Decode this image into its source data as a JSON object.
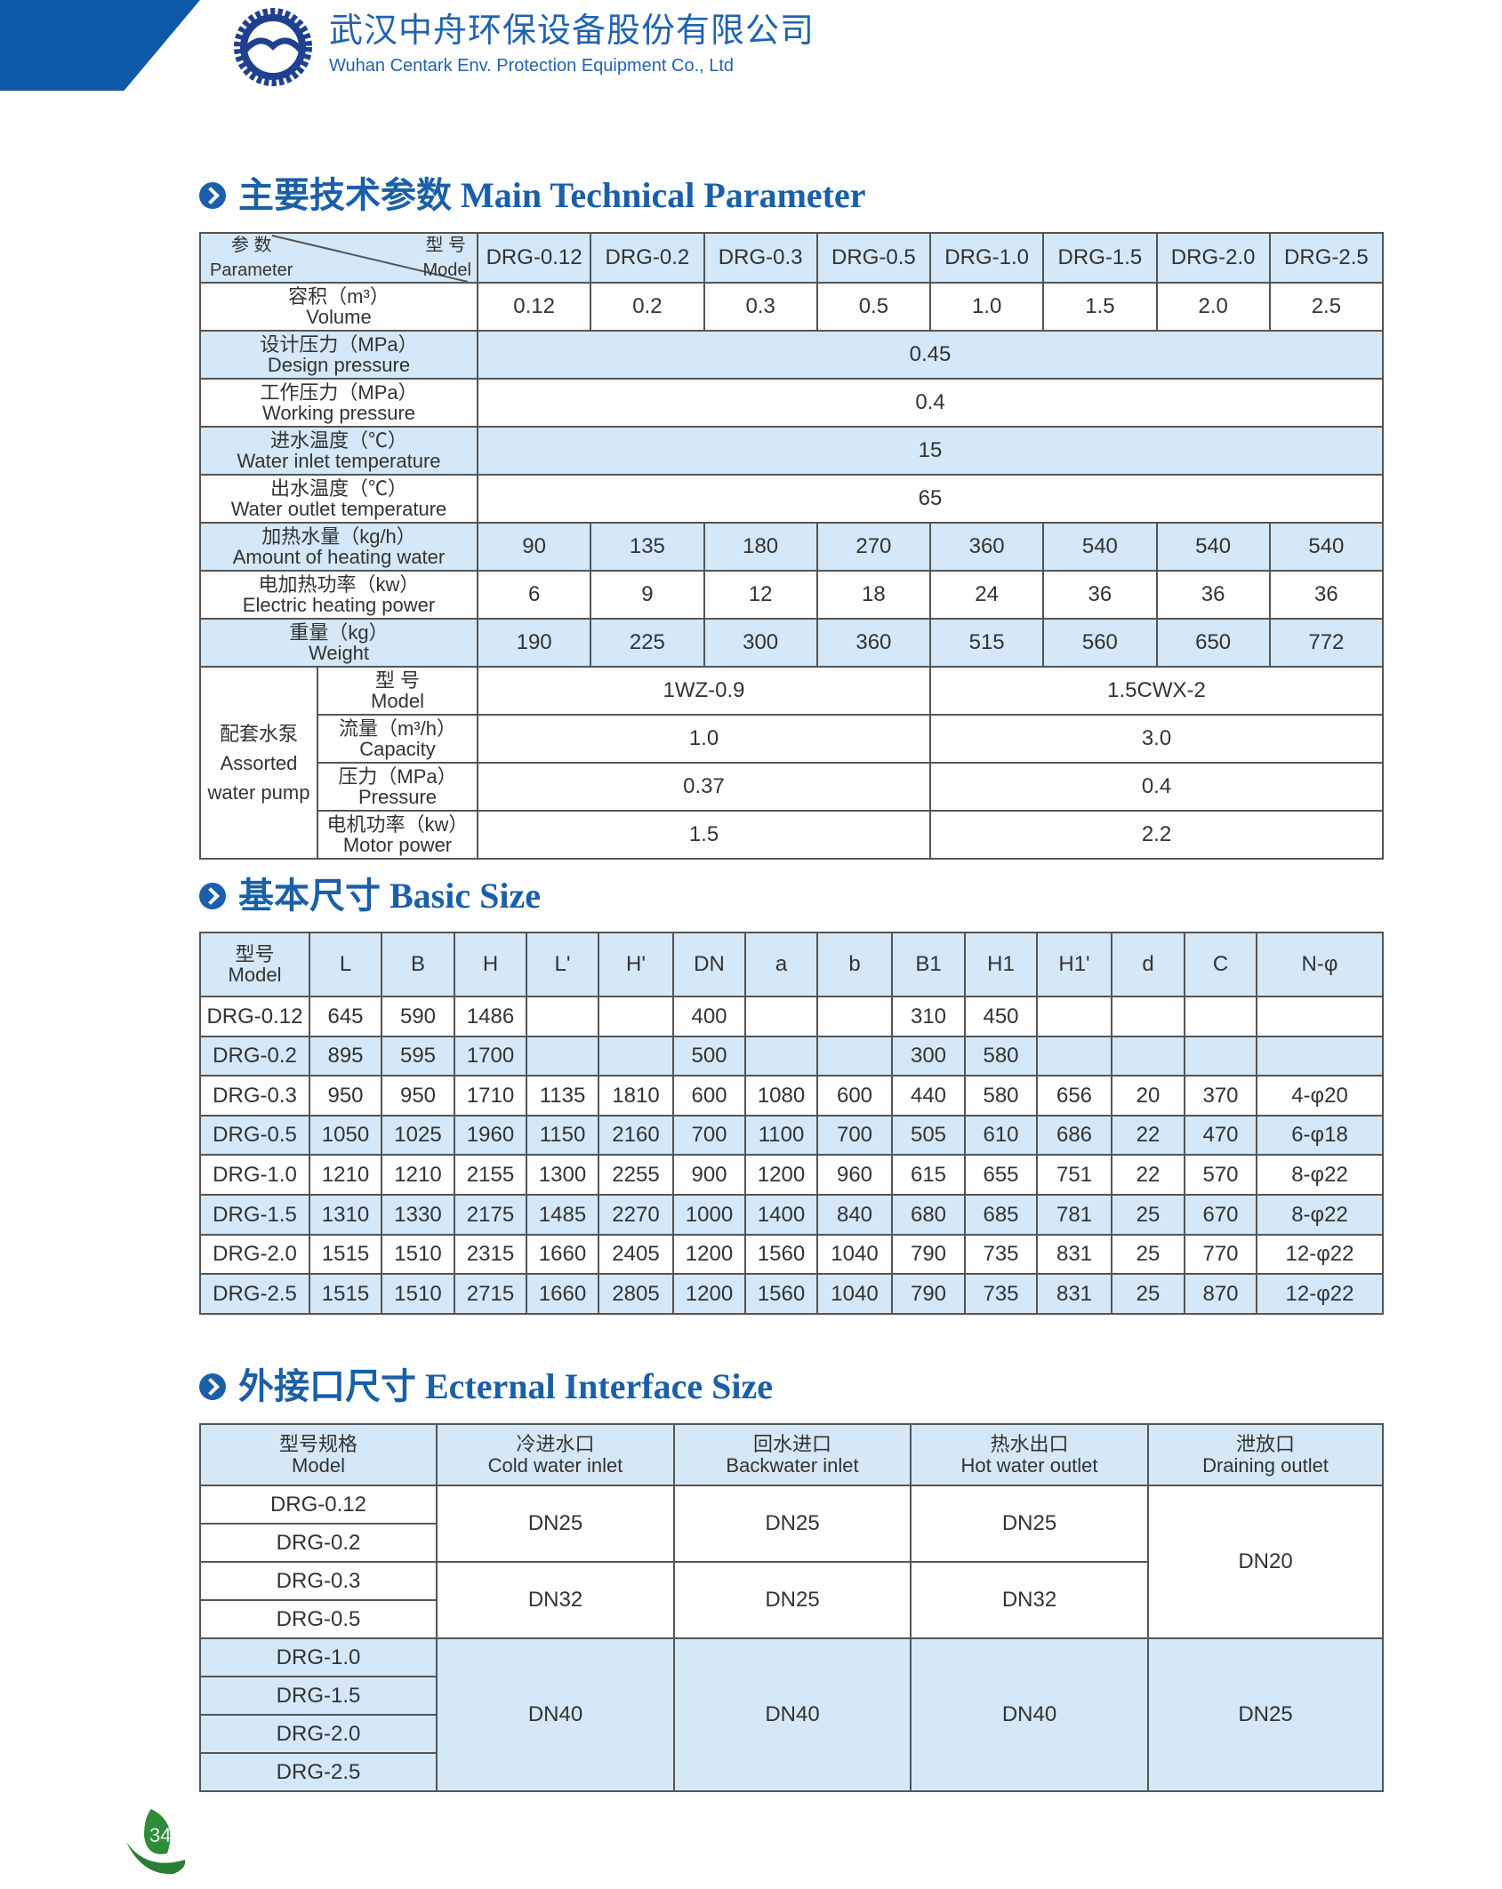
{
  "header": {
    "company_cn": "武汉中舟环保设备股份有限公司",
    "company_en": "Wuhan Centark Env. Protection Equipment Co., Ltd"
  },
  "colors": {
    "brand_blue": "#1a5fa8",
    "row_blue": "#d4e8f8"
  },
  "section1": {
    "title": "主要技术参数 Main Technical Parameter",
    "corner": {
      "param_cn": "参 数",
      "param_en": "Parameter",
      "model_cn": "型 号",
      "model_en": "Model"
    },
    "models": [
      "DRG-0.12",
      "DRG-0.2",
      "DRG-0.3",
      "DRG-0.5",
      "DRG-1.0",
      "DRG-1.5",
      "DRG-2.0",
      "DRG-2.5"
    ],
    "rows": [
      {
        "cn": "容积（m³）",
        "en": "Volume",
        "values": [
          "0.12",
          "0.2",
          "0.3",
          "0.5",
          "1.0",
          "1.5",
          "2.0",
          "2.5"
        ],
        "blue": false
      },
      {
        "cn": "设计压力（MPa）",
        "en": "Design pressure",
        "span": "0.45",
        "blue": true
      },
      {
        "cn": "工作压力（MPa）",
        "en": "Working pressure",
        "span": "0.4",
        "blue": false
      },
      {
        "cn": "进水温度（℃）",
        "en": "Water inlet temperature",
        "span": "15",
        "blue": true
      },
      {
        "cn": "出水温度（℃）",
        "en": "Water outlet temperature",
        "span": "65",
        "blue": false
      },
      {
        "cn": "加热水量（kg/h）",
        "en": "Amount of heating water",
        "values": [
          "90",
          "135",
          "180",
          "270",
          "360",
          "540",
          "540",
          "540"
        ],
        "blue": true
      },
      {
        "cn": "电加热功率（kw）",
        "en": "Electric heating power",
        "values": [
          "6",
          "9",
          "12",
          "18",
          "24",
          "36",
          "36",
          "36"
        ],
        "blue": false
      },
      {
        "cn": "重量（kg）",
        "en": "Weight",
        "values": [
          "190",
          "225",
          "300",
          "360",
          "515",
          "560",
          "650",
          "772"
        ],
        "blue": true
      }
    ],
    "pump": {
      "label_cn": "配套水泵",
      "label_en1": "Assorted",
      "label_en2": "water pump",
      "rows": [
        {
          "cn": "型 号",
          "en": "Model",
          "a": "1WZ-0.9",
          "b": "1.5CWX-2"
        },
        {
          "cn": "流量（m³/h）",
          "en": "Capacity",
          "a": "1.0",
          "b": "3.0"
        },
        {
          "cn": "压力（MPa）",
          "en": "Pressure",
          "a": "0.37",
          "b": "0.4"
        },
        {
          "cn": "电机功率（kw）",
          "en": "Motor power",
          "a": "1.5",
          "b": "2.2"
        }
      ]
    }
  },
  "section2": {
    "title": "基本尺寸 Basic Size",
    "model_cn": "型号",
    "model_en": "Model",
    "columns": [
      "L",
      "B",
      "H",
      "L'",
      "H'",
      "DN",
      "a",
      "b",
      "B1",
      "H1",
      "H1'",
      "d",
      "C",
      "N-φ"
    ],
    "rows": [
      [
        "DRG-0.12",
        "645",
        "590",
        "1486",
        "",
        "",
        "400",
        "",
        "",
        "310",
        "450",
        "",
        "",
        "",
        ""
      ],
      [
        "DRG-0.2",
        "895",
        "595",
        "1700",
        "",
        "",
        "500",
        "",
        "",
        "300",
        "580",
        "",
        "",
        "",
        ""
      ],
      [
        "DRG-0.3",
        "950",
        "950",
        "1710",
        "1135",
        "1810",
        "600",
        "1080",
        "600",
        "440",
        "580",
        "656",
        "20",
        "370",
        "4-φ20"
      ],
      [
        "DRG-0.5",
        "1050",
        "1025",
        "1960",
        "1150",
        "2160",
        "700",
        "1100",
        "700",
        "505",
        "610",
        "686",
        "22",
        "470",
        "6-φ18"
      ],
      [
        "DRG-1.0",
        "1210",
        "1210",
        "2155",
        "1300",
        "2255",
        "900",
        "1200",
        "960",
        "615",
        "655",
        "751",
        "22",
        "570",
        "8-φ22"
      ],
      [
        "DRG-1.5",
        "1310",
        "1330",
        "2175",
        "1485",
        "2270",
        "1000",
        "1400",
        "840",
        "680",
        "685",
        "781",
        "25",
        "670",
        "8-φ22"
      ],
      [
        "DRG-2.0",
        "1515",
        "1510",
        "2315",
        "1660",
        "2405",
        "1200",
        "1560",
        "1040",
        "790",
        "735",
        "831",
        "25",
        "770",
        "12-φ22"
      ],
      [
        "DRG-2.5",
        "1515",
        "1510",
        "2715",
        "1660",
        "2805",
        "1200",
        "1560",
        "1040",
        "790",
        "735",
        "831",
        "25",
        "870",
        "12-φ22"
      ]
    ]
  },
  "section3": {
    "title": "外接口尺寸 Ecternal Interface Size",
    "headers": [
      {
        "cn": "型号规格",
        "en": "Model"
      },
      {
        "cn": "冷进水口",
        "en": "Cold water inlet"
      },
      {
        "cn": "回水进口",
        "en": "Backwater inlet"
      },
      {
        "cn": "热水出口",
        "en": "Hot water outlet"
      },
      {
        "cn": "泄放口",
        "en": "Draining outlet"
      }
    ],
    "models": [
      "DRG-0.12",
      "DRG-0.2",
      "DRG-0.3",
      "DRG-0.5",
      "DRG-1.0",
      "DRG-1.5",
      "DRG-2.0",
      "DRG-2.5"
    ],
    "groups": [
      {
        "cold": "DN25",
        "back": "DN25",
        "hot": "DN25"
      },
      {
        "cold": "DN32",
        "back": "DN25",
        "hot": "DN32"
      },
      {
        "cold": "DN40",
        "back": "DN40",
        "hot": "DN40"
      }
    ],
    "drain": [
      "DN20",
      "DN25"
    ]
  },
  "footer": {
    "page_number": "34"
  }
}
